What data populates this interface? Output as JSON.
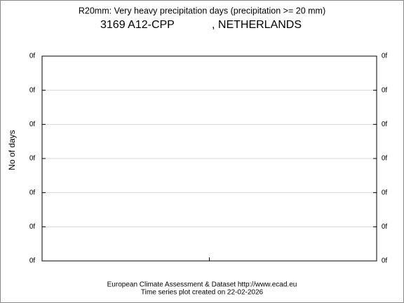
{
  "chart_data": {
    "type": "line",
    "title": "R20mm: Very heavy precipitation days (precipitation >= 20 mm)",
    "station": "3169 A12-CPP",
    "country": ", NETHERLANDS",
    "y_label": "No of days",
    "footer": [
      "European Climate Assessment & Dataset  http://www.ecad.eu",
      "Time series plot created on 22-02-2026"
    ],
    "series": [],
    "ylim": [
      0,
      6
    ],
    "yticks": [
      {
        "value": 0,
        "label": "0f"
      },
      {
        "value": 1,
        "label": "0f"
      },
      {
        "value": 2,
        "label": "0f"
      },
      {
        "value": 3,
        "label": "0f"
      },
      {
        "value": 4,
        "label": "0f"
      },
      {
        "value": 5,
        "label": "0f"
      },
      {
        "value": 6,
        "label": "0f"
      }
    ],
    "grid": true
  }
}
